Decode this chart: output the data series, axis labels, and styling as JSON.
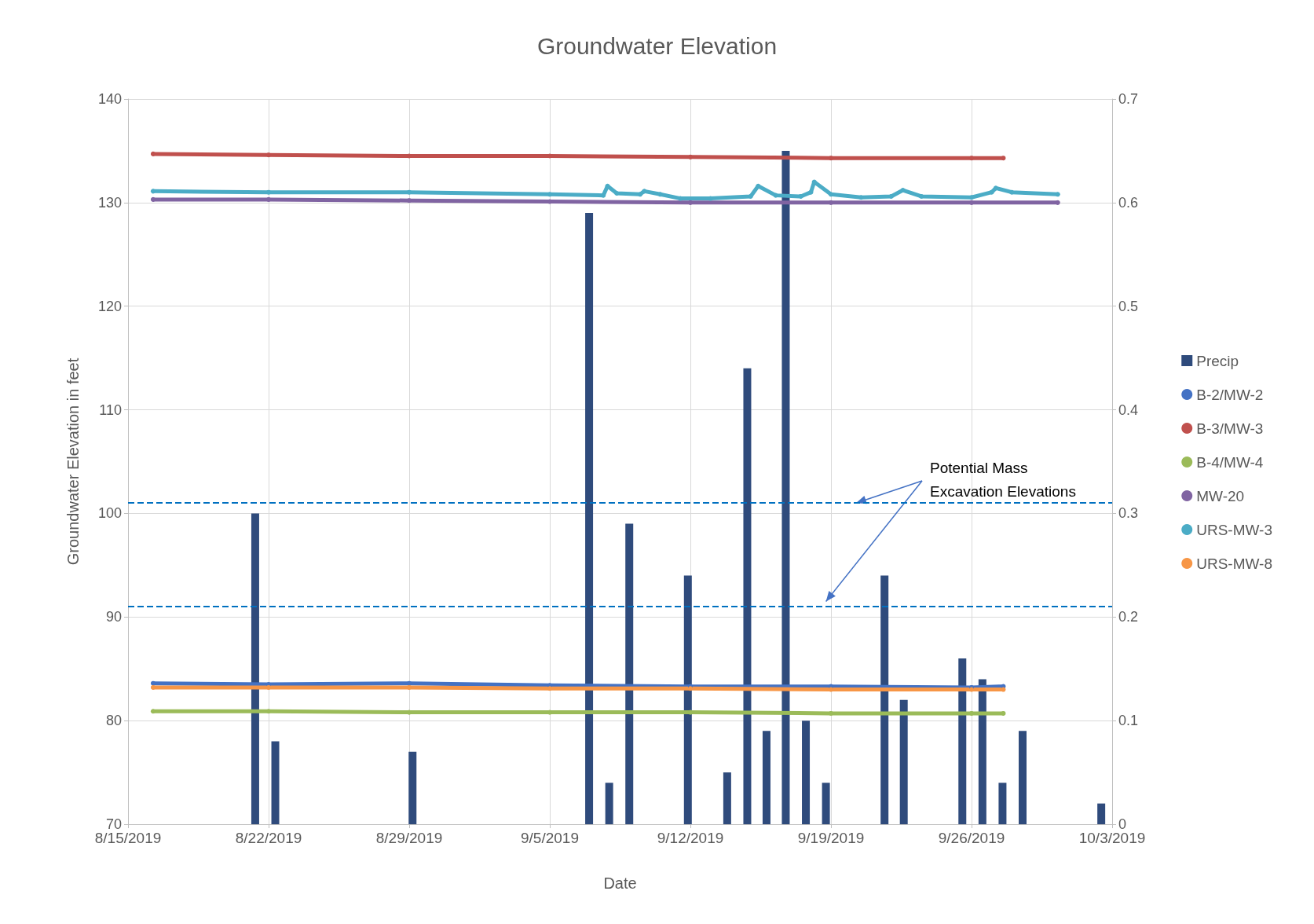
{
  "chart_data": {
    "type": "line",
    "title": "Groundwater Elevation",
    "xlabel": "Date",
    "ylabel": "Groundwater Elevation in feet",
    "xlim": [
      "2019-08-15",
      "2019-10-03"
    ],
    "xticks": [
      {
        "value": "2019-08-15",
        "label": "8/15/2019"
      },
      {
        "value": "2019-08-22",
        "label": "8/22/2019"
      },
      {
        "value": "2019-08-29",
        "label": "8/29/2019"
      },
      {
        "value": "2019-09-05",
        "label": "9/5/2019"
      },
      {
        "value": "2019-09-12",
        "label": "9/12/2019"
      },
      {
        "value": "2019-09-19",
        "label": "9/19/2019"
      },
      {
        "value": "2019-09-26",
        "label": "9/26/2019"
      },
      {
        "value": "2019-10-03",
        "label": "10/3/2019"
      }
    ],
    "ylim": [
      70,
      140
    ],
    "yticks": [
      70,
      80,
      90,
      100,
      110,
      120,
      130,
      140
    ],
    "y2lim": [
      0,
      0.7
    ],
    "y2ticks": [
      0,
      0.1,
      0.2,
      0.3,
      0.4,
      0.5,
      0.6,
      0.7
    ],
    "grid": true,
    "legend": "right",
    "marker": "circle",
    "ref_lines": [
      {
        "axis": "y",
        "value": 101,
        "color": "#0070c0",
        "line_style": "dashed"
      },
      {
        "axis": "y",
        "value": 91,
        "color": "#0070c0",
        "line_style": "dashed"
      }
    ],
    "annotations": [
      {
        "text": "Potential Mass Excavation Elevations",
        "x": "2019-09-20T06:00",
        "y": 101
      }
    ],
    "series": [
      {
        "name": "Precip",
        "type": "bar",
        "axis": "y2",
        "color": "#2f4b7c",
        "x": [
          "2019-08-21T08:00",
          "2019-08-22T08:00",
          "2019-08-29T04:00",
          "2019-09-06T23:00",
          "2019-09-07T23:00",
          "2019-09-08T23:00",
          "2019-09-11T21:00",
          "2019-09-13T20:00",
          "2019-09-14T20:00",
          "2019-09-15T19:00",
          "2019-09-16T18:00",
          "2019-09-17T18:00",
          "2019-09-18T18:00",
          "2019-09-21T16:00",
          "2019-09-22T15:00",
          "2019-09-25T13:00",
          "2019-09-26T13:00",
          "2019-09-27T13:00",
          "2019-09-28T13:00",
          "2019-10-02T11:00"
        ],
        "values": [
          0.3,
          0.08,
          0.07,
          0.59,
          0.04,
          0.29,
          0.24,
          0.05,
          0.44,
          0.09,
          0.65,
          0.1,
          0.04,
          0.24,
          0.12,
          0.16,
          0.14,
          0.04,
          0.09,
          0.02
        ]
      },
      {
        "name": "B-2/MW-2",
        "color": "#4472c4",
        "x": [
          "2019-08-16T06:00",
          "2019-08-22",
          "2019-08-29",
          "2019-09-05",
          "2019-09-12",
          "2019-09-19",
          "2019-09-26",
          "2019-09-27T14:00"
        ],
        "values": [
          83.6,
          83.5,
          83.6,
          83.4,
          83.3,
          83.3,
          83.2,
          83.3
        ]
      },
      {
        "name": "B-3/MW-3",
        "color": "#c0504d",
        "x": [
          "2019-08-16T06:00",
          "2019-08-22",
          "2019-08-29",
          "2019-09-05",
          "2019-09-12",
          "2019-09-19",
          "2019-09-26",
          "2019-09-27T14:00"
        ],
        "values": [
          134.7,
          134.6,
          134.5,
          134.5,
          134.4,
          134.3,
          134.3,
          134.3
        ]
      },
      {
        "name": "B-4/MW-4",
        "color": "#9bbb59",
        "x": [
          "2019-08-16T06:00",
          "2019-08-22",
          "2019-08-29",
          "2019-09-05",
          "2019-09-12",
          "2019-09-19",
          "2019-09-26",
          "2019-09-27T14:00"
        ],
        "values": [
          80.9,
          80.9,
          80.8,
          80.8,
          80.8,
          80.7,
          80.7,
          80.7
        ]
      },
      {
        "name": "MW-20",
        "color": "#8064a2",
        "x": [
          "2019-08-16T06:00",
          "2019-08-22",
          "2019-08-29",
          "2019-09-05",
          "2019-09-12",
          "2019-09-19",
          "2019-09-26",
          "2019-09-30T07:00"
        ],
        "values": [
          130.3,
          130.3,
          130.2,
          130.1,
          130.0,
          130.0,
          130.0,
          130.0
        ]
      },
      {
        "name": "URS-MW-3",
        "color": "#4bacc6",
        "x": [
          "2019-08-16T06:00",
          "2019-08-22",
          "2019-08-29",
          "2019-09-05",
          "2019-09-07T16:00",
          "2019-09-07T21:00",
          "2019-09-08T08:00",
          "2019-09-09T12:00",
          "2019-09-09T17:00",
          "2019-09-10T12:00",
          "2019-09-11T12:00",
          "2019-09-13",
          "2019-09-15",
          "2019-09-15T09:00",
          "2019-09-16T06:00",
          "2019-09-17T12:00",
          "2019-09-18",
          "2019-09-18T04:00",
          "2019-09-19",
          "2019-09-20T12:00",
          "2019-09-22",
          "2019-09-22T14:00",
          "2019-09-23T12:00",
          "2019-09-26",
          "2019-09-27",
          "2019-09-27T05:00",
          "2019-09-28",
          "2019-09-30T07:00"
        ],
        "values": [
          131.1,
          131.0,
          131.0,
          130.8,
          130.7,
          131.6,
          130.9,
          130.8,
          131.1,
          130.8,
          130.4,
          130.4,
          130.6,
          131.6,
          130.7,
          130.6,
          131.0,
          132.0,
          130.8,
          130.5,
          130.6,
          131.2,
          130.6,
          130.5,
          131.0,
          131.4,
          131.0,
          130.8
        ]
      },
      {
        "name": "URS-MW-8",
        "color": "#f79646",
        "x": [
          "2019-08-16T06:00",
          "2019-08-22",
          "2019-08-29",
          "2019-09-05",
          "2019-09-12",
          "2019-09-19",
          "2019-09-26",
          "2019-09-27T14:00"
        ],
        "values": [
          83.2,
          83.2,
          83.2,
          83.1,
          83.1,
          83.0,
          83.0,
          83.0
        ]
      }
    ]
  }
}
